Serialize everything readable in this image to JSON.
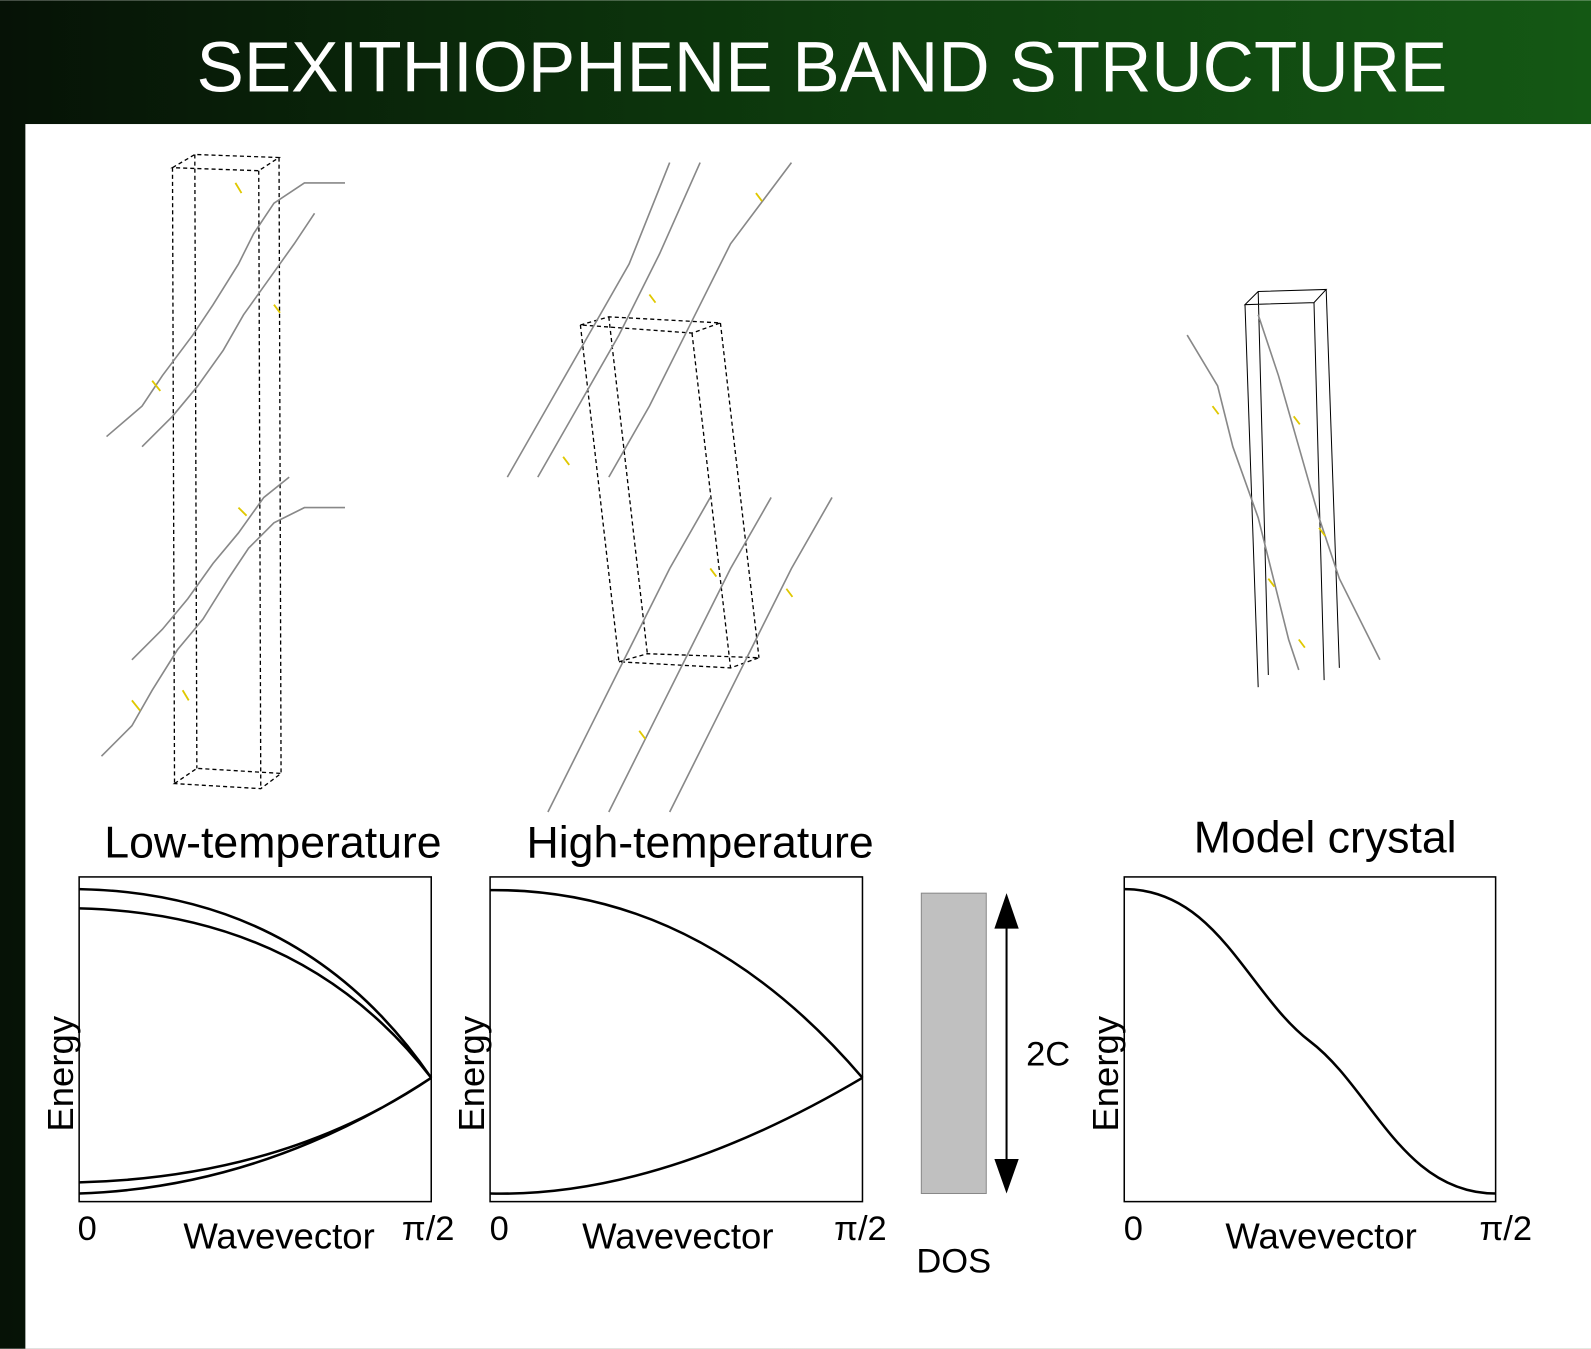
{
  "header": {
    "title": "SEXITHIOPHENE BAND STRUCTURE"
  },
  "panels": [
    {
      "label": "Low-temperature",
      "y_label": "Energy",
      "x_label": "Wavevector",
      "x_start": "0",
      "x_end": "π/2"
    },
    {
      "label": "High-temperature",
      "y_label": "Energy",
      "x_label": "Wavevector",
      "x_start": "0",
      "x_end": "π/2"
    },
    {
      "label": "Model crystal",
      "y_label": "Energy",
      "x_label": "Wavevector",
      "x_start": "0",
      "x_end": "π/2"
    }
  ],
  "dos": {
    "label": "DOS",
    "width_label": "2C"
  }
}
